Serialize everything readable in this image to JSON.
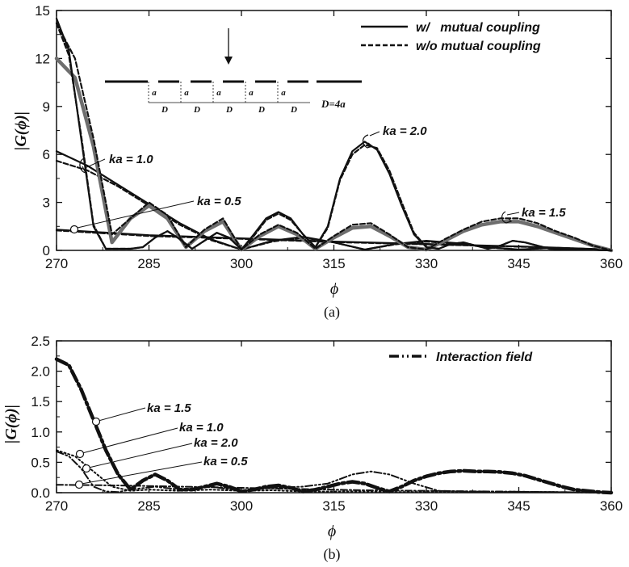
{
  "chart_data": [
    {
      "type": "line",
      "panel_caption": "(a)",
      "xlabel": "ϕ",
      "ylabel": "|G(ϕ)|",
      "xlim": [
        270,
        360
      ],
      "ylim": [
        0,
        15
      ],
      "xticks": [
        270,
        285,
        300,
        315,
        330,
        345,
        360
      ],
      "yticks": [
        0,
        3,
        6,
        9,
        12,
        15
      ],
      "legend": {
        "placement": "top-right",
        "entries": [
          {
            "label": "w/   mutual coupling",
            "style": "solid"
          },
          {
            "label": "w/o mutual coupling",
            "style": "dashed"
          }
        ]
      },
      "annotations": [
        "ka = 1.0",
        "ka = 0.5",
        "ka = 2.0",
        "ka = 1.5"
      ],
      "inset": {
        "a_label": "a",
        "d_label": "D",
        "relation": "D=4a"
      },
      "series": [
        {
          "name": "ka = 0.5",
          "style": "solid",
          "x": [
            270,
            285,
            300,
            315,
            330,
            345,
            360
          ],
          "y": [
            1.3,
            0.95,
            0.75,
            0.55,
            0.4,
            0.25,
            0.05
          ]
        },
        {
          "name": "ka = 0.5",
          "style": "dashed",
          "x": [
            270,
            285,
            300,
            315,
            330,
            345,
            360
          ],
          "y": [
            1.25,
            0.9,
            0.72,
            0.52,
            0.38,
            0.23,
            0.05
          ]
        },
        {
          "name": "ka = 1.0",
          "style": "solid",
          "x": [
            270,
            275,
            280,
            285,
            290,
            295,
            300,
            305,
            310,
            315,
            320,
            325,
            330,
            335,
            340,
            345,
            350,
            355,
            360
          ],
          "y": [
            6.2,
            5.3,
            4.1,
            2.9,
            1.7,
            0.7,
            0.05,
            0.6,
            0.85,
            0.5,
            0.05,
            0.4,
            0.6,
            0.45,
            0.2,
            0.05,
            0.15,
            0.1,
            0
          ]
        },
        {
          "name": "ka = 1.0",
          "style": "dashed",
          "x": [
            270,
            275,
            280,
            285,
            290,
            295,
            300,
            305,
            310,
            315,
            320,
            325,
            330,
            335,
            340,
            345,
            350,
            355,
            360
          ],
          "y": [
            5.6,
            5.0,
            4.0,
            2.8,
            1.6,
            0.65,
            0.05,
            0.55,
            0.8,
            0.5,
            0.05,
            0.38,
            0.55,
            0.42,
            0.18,
            0.05,
            0.15,
            0.1,
            0
          ]
        },
        {
          "name": "ka = 1.5",
          "style": "thick-gray",
          "x": [
            270,
            273,
            276,
            279,
            282,
            285,
            288,
            291,
            294,
            297,
            300,
            303,
            306,
            309,
            312,
            315,
            318,
            321,
            324,
            327,
            330,
            333,
            336,
            339,
            342,
            345,
            348,
            351,
            354,
            357,
            360
          ],
          "y": [
            12.0,
            10.8,
            6.5,
            0.5,
            2.0,
            2.8,
            2.0,
            0.2,
            1.2,
            1.8,
            0.05,
            0.9,
            1.5,
            1.0,
            0.1,
            0.8,
            1.4,
            1.5,
            0.9,
            0.2,
            0.05,
            0.6,
            1.2,
            1.6,
            1.8,
            1.8,
            1.5,
            1.1,
            0.7,
            0.3,
            0
          ]
        },
        {
          "name": "ka = 1.5",
          "style": "dashed",
          "x": [
            270,
            273,
            276,
            279,
            282,
            285,
            288,
            291,
            294,
            297,
            300,
            303,
            306,
            309,
            312,
            315,
            318,
            321,
            324,
            327,
            330,
            333,
            336,
            339,
            342,
            345,
            348,
            351,
            354,
            357,
            360
          ],
          "y": [
            14.2,
            12.0,
            7.0,
            1.0,
            2.0,
            3.0,
            2.2,
            0.2,
            1.3,
            2.0,
            0.05,
            1.0,
            1.6,
            1.1,
            0.1,
            0.9,
            1.6,
            1.7,
            1.0,
            0.2,
            0.05,
            0.7,
            1.3,
            1.8,
            2.0,
            2.0,
            1.7,
            1.2,
            0.8,
            0.3,
            0
          ]
        },
        {
          "name": "ka = 2.0",
          "style": "solid",
          "x": [
            270,
            272,
            274,
            276,
            278,
            280,
            282,
            284,
            286,
            288,
            290,
            292,
            294,
            296,
            298,
            300,
            302,
            304,
            306,
            308,
            310,
            312,
            314,
            316,
            318,
            320,
            322,
            324,
            326,
            328,
            330,
            332,
            334,
            336,
            338,
            340,
            342,
            344,
            346,
            348,
            350,
            352,
            354,
            356,
            358,
            360
          ],
          "y": [
            14.5,
            12.5,
            7.0,
            1.5,
            0.1,
            0.1,
            0.1,
            0.2,
            0.8,
            1.2,
            0.7,
            0.1,
            0.6,
            1.1,
            0.8,
            0.05,
            1.0,
            2.0,
            2.4,
            2.0,
            1.0,
            0.2,
            1.5,
            4.5,
            6.2,
            6.8,
            6.3,
            4.8,
            2.8,
            1.0,
            0.2,
            0.1,
            0.4,
            0.5,
            0.3,
            0.1,
            0.3,
            0.6,
            0.5,
            0.3,
            0.1,
            0.05,
            0.05,
            0.05,
            0.02,
            0
          ]
        },
        {
          "name": "ka = 2.0",
          "style": "dashed",
          "x": [
            270,
            272,
            274,
            276,
            278,
            280,
            282,
            284,
            286,
            288,
            290,
            292,
            294,
            296,
            298,
            300,
            302,
            304,
            306,
            308,
            310,
            312,
            314,
            316,
            318,
            320,
            322,
            324,
            326,
            328,
            330,
            332,
            334,
            336,
            338,
            340,
            342,
            344,
            346,
            348,
            350,
            352,
            354,
            356,
            358,
            360
          ],
          "y": [
            14.2,
            12.2,
            7.2,
            1.6,
            0.1,
            0.1,
            0.1,
            0.2,
            0.8,
            1.2,
            0.7,
            0.1,
            0.6,
            1.1,
            0.8,
            0.05,
            0.9,
            1.9,
            2.3,
            1.9,
            1.0,
            0.2,
            1.4,
            4.4,
            6.0,
            6.6,
            6.4,
            5.0,
            3.0,
            1.1,
            0.2,
            0.1,
            0.4,
            0.5,
            0.3,
            0.1,
            0.3,
            0.6,
            0.5,
            0.3,
            0.1,
            0.05,
            0.05,
            0.05,
            0.02,
            0
          ]
        }
      ]
    },
    {
      "type": "line",
      "panel_caption": "(b)",
      "xlabel": "ϕ",
      "ylabel": "|G(ϕ)|",
      "xlim": [
        270,
        360
      ],
      "ylim": [
        0,
        2.5
      ],
      "xticks": [
        270,
        285,
        300,
        315,
        330,
        345,
        360
      ],
      "yticks": [
        0.0,
        0.5,
        1.0,
        1.5,
        2.0,
        2.5
      ],
      "legend": {
        "placement": "top-right",
        "entries": [
          {
            "label": "Interaction field",
            "style": "dash-dot-dot"
          }
        ]
      },
      "annotations": [
        "ka = 1.5",
        "ka = 1.0",
        "ka = 2.0",
        "ka = 0.5"
      ],
      "series": [
        {
          "name": "ka = 1.5",
          "style": "thick-dash-dot",
          "x": [
            270,
            272,
            274,
            276,
            278,
            280,
            282,
            284,
            286,
            288,
            290,
            292,
            294,
            296,
            298,
            300,
            302,
            304,
            306,
            308,
            310,
            312,
            314,
            316,
            318,
            320,
            322,
            324,
            326,
            328,
            330,
            332,
            334,
            336,
            338,
            340,
            342,
            344,
            346,
            348,
            350,
            352,
            354,
            356,
            358,
            360
          ],
          "y": [
            2.2,
            2.1,
            1.7,
            1.2,
            0.7,
            0.3,
            0.05,
            0.2,
            0.3,
            0.2,
            0.05,
            0.05,
            0.1,
            0.15,
            0.1,
            0.02,
            0.05,
            0.1,
            0.12,
            0.08,
            0.02,
            0.05,
            0.1,
            0.15,
            0.18,
            0.15,
            0.08,
            0.02,
            0.1,
            0.2,
            0.27,
            0.32,
            0.35,
            0.36,
            0.35,
            0.35,
            0.34,
            0.32,
            0.28,
            0.22,
            0.16,
            0.1,
            0.05,
            0.03,
            0.01,
            0
          ]
        },
        {
          "name": "ka = 1.0",
          "style": "dotted",
          "x": [
            270,
            273,
            276,
            279,
            282,
            285,
            290,
            295,
            300,
            305,
            310,
            315,
            320,
            325,
            330,
            340,
            350,
            360
          ],
          "y": [
            0.7,
            0.6,
            0.35,
            0.1,
            0.03,
            0.05,
            0.03,
            0.05,
            0.03,
            0.04,
            0.02,
            0.02,
            0.02,
            0.01,
            0.01,
            0.01,
            0.01,
            0
          ]
        },
        {
          "name": "ka = 2.0",
          "style": "dash-dot-dot",
          "x": [
            270,
            272,
            274,
            276,
            278,
            280,
            282,
            286,
            290,
            295,
            300,
            305,
            310,
            314,
            318,
            321,
            324,
            328,
            332,
            336,
            340,
            350,
            360
          ],
          "y": [
            0.68,
            0.6,
            0.4,
            0.1,
            0.02,
            0.01,
            0.05,
            0.1,
            0.05,
            0.1,
            0.03,
            0.08,
            0.1,
            0.15,
            0.3,
            0.35,
            0.3,
            0.15,
            0.03,
            0.02,
            0.02,
            0.01,
            0
          ]
        },
        {
          "name": "ka = 0.5",
          "style": "dash-dot",
          "x": [
            270,
            280,
            290,
            300,
            310,
            320,
            330,
            340,
            350,
            360
          ],
          "y": [
            0.13,
            0.12,
            0.1,
            0.08,
            0.06,
            0.04,
            0.03,
            0.02,
            0.01,
            0
          ]
        }
      ]
    }
  ]
}
